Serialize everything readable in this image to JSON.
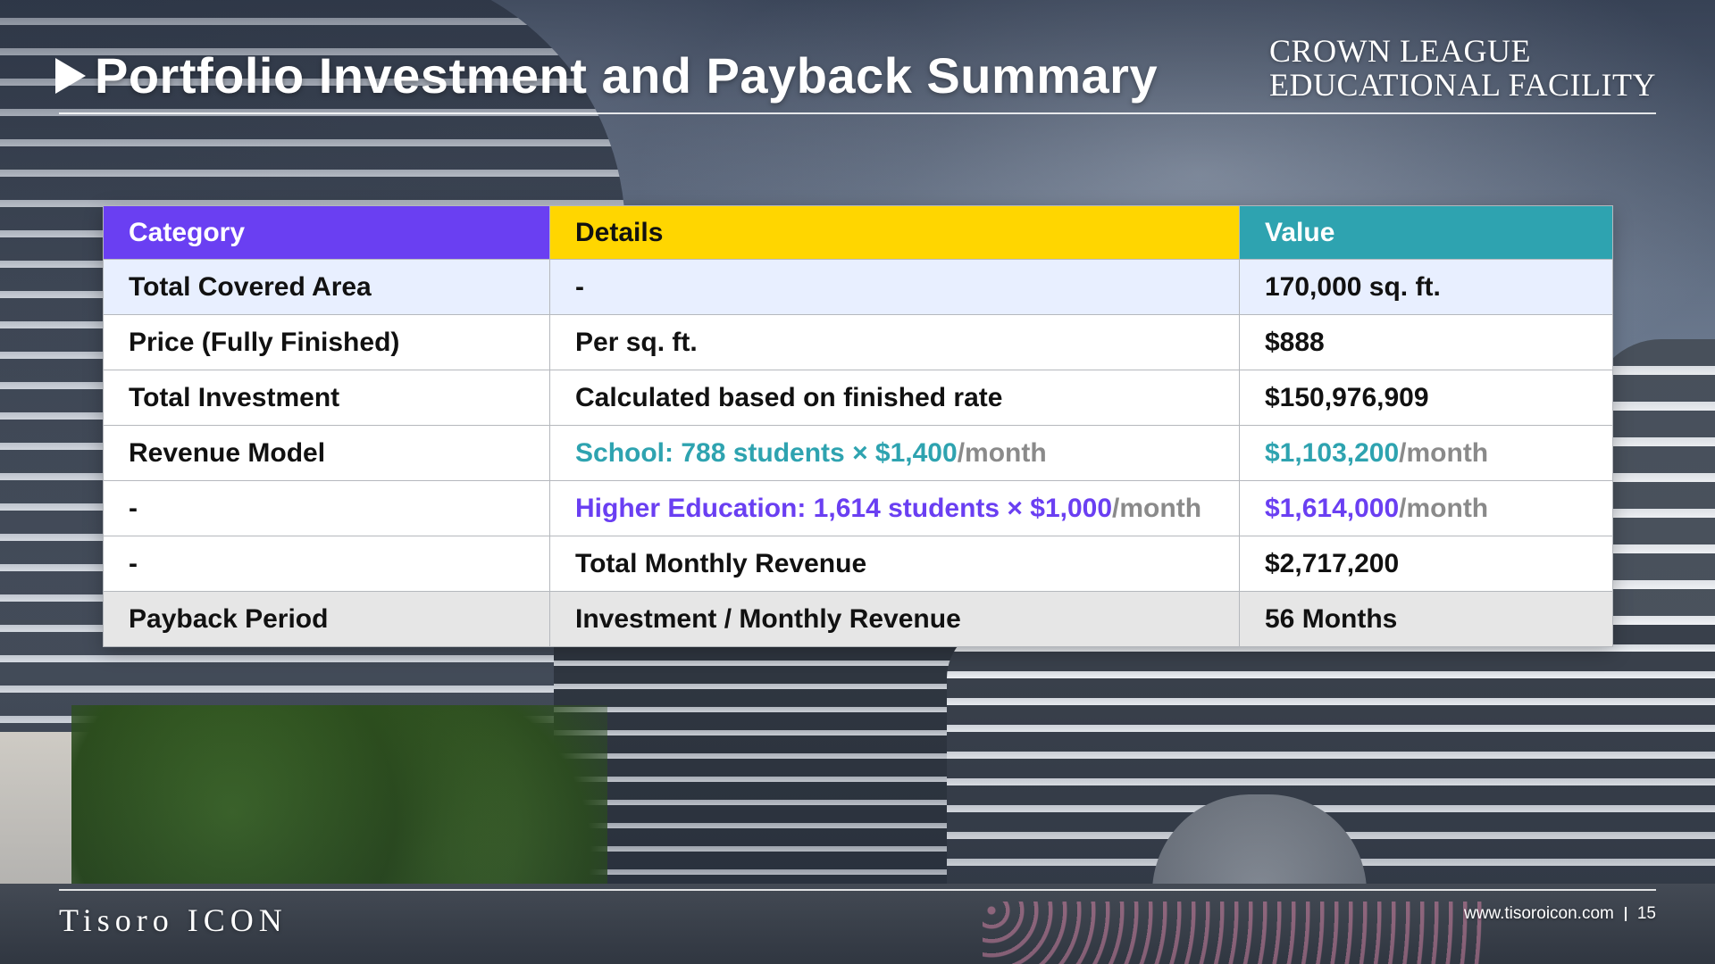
{
  "header": {
    "title": "Portfolio Investment and Payback Summary",
    "brand_line1": "CROWN LEAGUE",
    "brand_line2": "EDUCATIONAL FACILITY"
  },
  "table": {
    "columns": [
      "Category",
      "Details",
      "Value"
    ],
    "rows": [
      {
        "category": "Total Covered Area",
        "details": "-",
        "value": "170,000 sq. ft."
      },
      {
        "category": "Price (Fully Finished)",
        "details": "Per sq. ft.",
        "value": "$888"
      },
      {
        "category": "Total Investment",
        "details": "Calculated based on finished rate",
        "value": "$150,976,909"
      },
      {
        "category": "Revenue Model",
        "details_highlight": "School: 788 students × $1,400",
        "details_suffix": "/month",
        "value_highlight": "$1,103,200",
        "value_suffix": "/month"
      },
      {
        "category": "-",
        "details_highlight": "Higher Education: 1,614 students × $1,000",
        "details_suffix": "/month",
        "value_highlight": "$1,614,000",
        "value_suffix": "/month"
      },
      {
        "category": "-",
        "details": "Total Monthly Revenue",
        "value": "$2,717,200"
      },
      {
        "category": "Payback Period",
        "details": "Investment / Monthly Revenue",
        "value": "56 Months"
      }
    ],
    "colors": {
      "category_header": "#6a3ff2",
      "details_header": "#ffd600",
      "value_header": "#2ea3b0",
      "school_highlight": "#2ea3b0",
      "higher_ed_highlight": "#6a3ff2"
    }
  },
  "footer": {
    "logo": "Tisoro ICON",
    "website": "www.tisoroicon.com",
    "page_number": "15"
  },
  "icons": {
    "title_marker": "play-triangle-icon"
  }
}
